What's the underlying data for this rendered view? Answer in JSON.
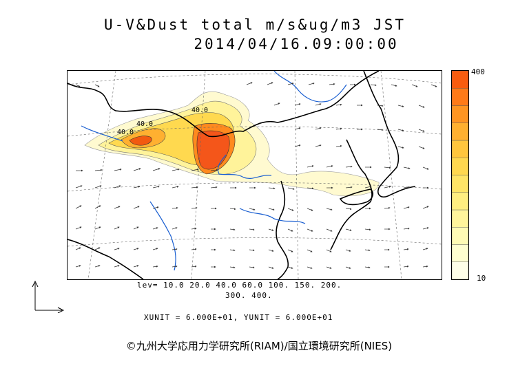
{
  "title": {
    "line1": "U-V&Dust total m/s&ug/m3 JST",
    "line2": "2014/04/16.09:00:00"
  },
  "legend": {
    "max_label": "400",
    "min_label": "10",
    "colors": [
      "#ffffe8",
      "#ffffd0",
      "#fffbb5",
      "#fff59c",
      "#ffee80",
      "#ffe566",
      "#ffd84f",
      "#ffc63d",
      "#ffb030",
      "#ff9522",
      "#ff7a18",
      "#f95c0f"
    ]
  },
  "levels": {
    "line1": "lev= 10.0 20.0 40.0 60.0 100. 150. 200.",
    "line2": "300. 400."
  },
  "units": {
    "text": "XUNIT = 6.000E+01, YUNIT = 6.000E+01"
  },
  "map": {
    "contour_labels": [
      "40.0",
      "40.0",
      "40.0"
    ],
    "colors": {
      "coast": "#000000",
      "river": "#1a5fd1",
      "border": "#000000",
      "vector": "#333333",
      "grid": "#555555"
    }
  },
  "copyright": "©九州大学応用力学研究所(RIAM)/国立環境研究所(NIES)"
}
